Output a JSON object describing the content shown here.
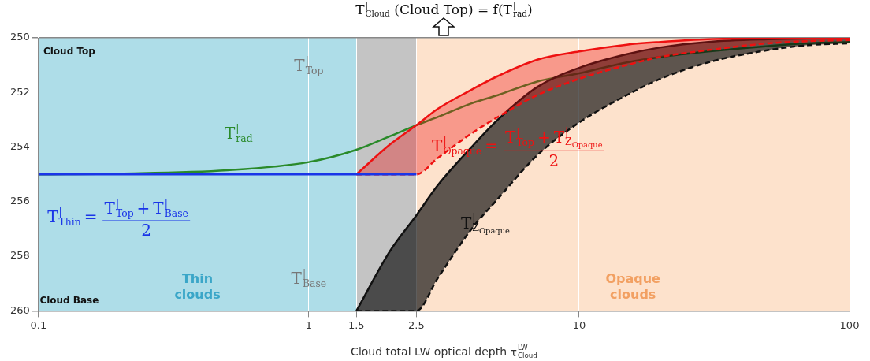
{
  "chart_data": {
    "type": "line",
    "title": [
      {
        "sym": "T",
        "sup": "|",
        "sub": "Cloud"
      },
      " (Cloud Top) = f(",
      {
        "sym": "T",
        "sup": "|",
        "sub": "rad"
      },
      ")"
    ],
    "x_label": [
      "Cloud total LW optical depth ",
      {
        "sym": "τ",
        "sup": "LW",
        "sub": "Cloud"
      }
    ],
    "log": "x",
    "grid": true,
    "legend": "none",
    "xlim": [
      0.1,
      100
    ],
    "xticks": [
      0.1,
      1,
      1.5,
      2.5,
      10,
      100
    ],
    "ylim": [
      250,
      260
    ],
    "yticks": [
      250,
      252,
      254,
      256,
      258,
      260
    ],
    "x": [
      0.1,
      0.2,
      0.5,
      1,
      1.5,
      2,
      2.5,
      3,
      4,
      5,
      7,
      10,
      15,
      20,
      30,
      50,
      70,
      100
    ],
    "series": [
      {
        "color": "#1a35e8",
        "type": "line",
        "line_style": "solid",
        "values": [
          255,
          255,
          255,
          255,
          255,
          255,
          255,
          null,
          null,
          null,
          null,
          null,
          null,
          null,
          null,
          null,
          null,
          null
        ]
      },
      {
        "color": "#ee1111",
        "type": "area",
        "line_style": "solid",
        "values": [
          null,
          null,
          null,
          null,
          255,
          253.9,
          253.2,
          252.6,
          251.9,
          251.4,
          250.8,
          250.5,
          250.25,
          250.15,
          250.05,
          250.02,
          250.01,
          250.0
        ]
      },
      {
        "color": "#ee1111",
        "type": "line",
        "line_style": "dashed",
        "values": [
          null,
          null,
          null,
          null,
          255,
          255,
          255,
          254.4,
          253.5,
          252.9,
          252.1,
          251.5,
          251.0,
          250.7,
          250.45,
          250.2,
          250.12,
          250.08
        ]
      },
      {
        "color": "#111111",
        "type": "area",
        "line_style": "solid",
        "values": [
          null,
          null,
          null,
          null,
          260,
          257.8,
          256.5,
          255.4,
          254.0,
          253.0,
          251.8,
          251.1,
          250.6,
          250.35,
          250.15,
          250.05,
          250.02,
          250.01
        ]
      },
      {
        "color": "#111111",
        "type": "line",
        "line_style": "dashed",
        "values": [
          null,
          null,
          null,
          null,
          260,
          260,
          260,
          258.8,
          257.0,
          255.9,
          254.3,
          253.1,
          252.1,
          251.5,
          250.9,
          250.45,
          250.27,
          250.2
        ]
      },
      {
        "color": "#2a8a2a",
        "type": "line",
        "line_style": "solid",
        "values": [
          255,
          254.97,
          254.85,
          254.55,
          254.1,
          253.6,
          253.2,
          252.9,
          252.4,
          252.1,
          251.6,
          251.3,
          250.9,
          250.7,
          250.5,
          250.3,
          250.2,
          250.15
        ]
      }
    ],
    "regions": [
      {
        "from": 0.1,
        "to": 1.5,
        "color": "#aedde8",
        "label": "Thin clouds"
      },
      {
        "from": 1.5,
        "to": 2.5,
        "color": "#c4c4c4"
      },
      {
        "from": 2.5,
        "to": 100,
        "color": "#fde2cc",
        "label": "Opaque clouds"
      }
    ],
    "annotations": [
      {
        "x": 0.13,
        "y": 250.5,
        "color": "#111111",
        "text": [
          "Cloud Top"
        ]
      },
      {
        "x": 0.13,
        "y": 259.6,
        "color": "#111111",
        "text": [
          "Cloud Base"
        ]
      },
      {
        "x": 1.0,
        "y": 251.0,
        "color": "#777777",
        "text": [
          {
            "sym": "T",
            "sup": "|",
            "sub": "Top"
          }
        ]
      },
      {
        "x": 0.55,
        "y": 253.5,
        "color": "#2a8a2a",
        "text": [
          {
            "sym": "T",
            "sup": "|",
            "sub": "rad"
          }
        ]
      },
      {
        "x": 0.2,
        "y": 256.6,
        "color": "#1a35e8",
        "text": [
          {
            "sym": "T",
            "sup": "|",
            "sub": "Thin"
          },
          "=",
          {
            "frac": {
              "num": [
                {
                  "sym": "T",
                  "sup": "|",
                  "sub": "Top"
                },
                "+",
                {
                  "sym": "T",
                  "sup": "|",
                  "sub": "Base"
                }
              ],
              "den": [
                "2"
              ]
            }
          }
        ]
      },
      {
        "x": 1.0,
        "y": 258.8,
        "color": "#777777",
        "text": [
          {
            "sym": "T",
            "sup": "|",
            "sub": "Base"
          }
        ]
      },
      {
        "x": 6.0,
        "y": 254.0,
        "color": "#ee1111",
        "text": [
          {
            "sym": "T",
            "sup": "|",
            "sub": "Opaque"
          },
          "=",
          {
            "frac": {
              "num": [
                {
                  "sym": "T",
                  "sup": "|",
                  "sub": "Top"
                },
                "+",
                {
                  "sym": "T",
                  "sup": "|",
                  "sub": "Z",
                  "subsub": "Opaque"
                }
              ],
              "den": [
                "2"
              ]
            }
          }
        ]
      },
      {
        "x": 4.5,
        "y": 256.8,
        "color": "#111111",
        "text": [
          {
            "sym": "T",
            "sup": "|",
            "sub": "Z",
            "subsub": "Opaque"
          }
        ]
      }
    ]
  }
}
